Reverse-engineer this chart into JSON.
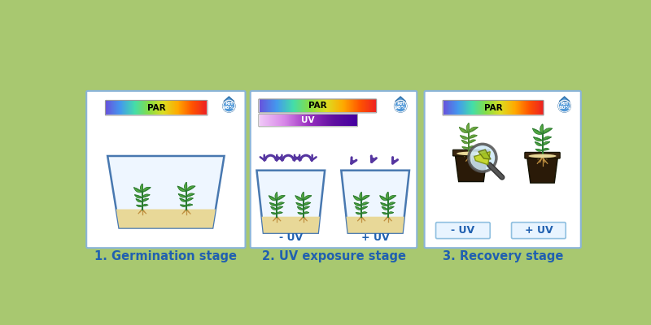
{
  "bg_color": "#a8c870",
  "panel_bg": "#ffffff",
  "panel_edge": "#8ab4d8",
  "panel1_title": "1. Germination stage",
  "panel2_title": "2. UV exposure stage",
  "panel3_title": "3. Recovery stage",
  "title_color": "#2060b0",
  "title_fontsize": 10.5,
  "rh1": "98%",
  "rh2": "98%",
  "rh3": "60%",
  "uv_minus": "- UV",
  "uv_plus": "+ UV",
  "par_label": "PAR",
  "uv_label": "UV",
  "arrow_color": "#5535a0",
  "trough_edge": "#4878b0",
  "trough_fill": "#eef6ff",
  "soil_color": "#e8d898",
  "root_color": "#c09040",
  "plant_green_dark": "#2a7a30",
  "plant_green_light": "#55aa40",
  "pot_color": "#2a1a08",
  "pot_rim": "#3a2510",
  "drop_color": "#5098d8",
  "drop_outline": "#3070a8",
  "label_box_bg": "#e8f4ff",
  "label_box_edge": "#90c0e0"
}
